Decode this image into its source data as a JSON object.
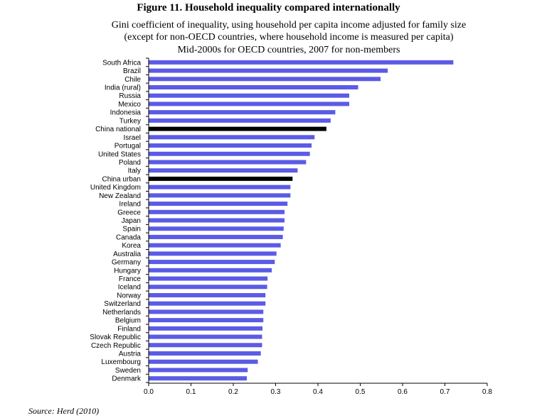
{
  "chart_data": {
    "type": "bar",
    "orientation": "horizontal",
    "title": "Figure 11. Household inequality compared internationally",
    "subtitle_lines": [
      "Gini coefficient of inequality, using household per capita income adjusted for family size",
      "(except for non-OECD countries, where household income is measured per capita)",
      "Mid-2000s for OECD countries, 2007 for non-members"
    ],
    "categories": [
      "South Africa",
      "Brazil",
      "Chile",
      "India (rural)",
      "Russia",
      "Mexico",
      "Indonesia",
      "Turkey",
      "China national",
      "Israel",
      "Portugal",
      "United States",
      "Poland",
      "Italy",
      "China urban",
      "United Kingdom",
      "New Zealand",
      "Ireland",
      "Greece",
      "Japan",
      "Spain",
      "Canada",
      "Korea",
      "Australia",
      "Germany",
      "Hungary",
      "France",
      "Iceland",
      "Norway",
      "Switzerland",
      "Netherlands",
      "Belgium",
      "Finland",
      "Slovak Republic",
      "Czech Republic",
      "Austria",
      "Luxembourg",
      "Sweden",
      "Denmark"
    ],
    "values": [
      0.72,
      0.565,
      0.548,
      0.495,
      0.474,
      0.474,
      0.441,
      0.43,
      0.42,
      0.392,
      0.385,
      0.381,
      0.372,
      0.352,
      0.34,
      0.335,
      0.335,
      0.328,
      0.321,
      0.321,
      0.319,
      0.317,
      0.312,
      0.302,
      0.298,
      0.291,
      0.281,
      0.28,
      0.276,
      0.276,
      0.271,
      0.271,
      0.269,
      0.268,
      0.268,
      0.265,
      0.258,
      0.234,
      0.232
    ],
    "highlight": [
      "China national",
      "China urban"
    ],
    "xlim": [
      0,
      0.8
    ],
    "xticks": [
      "0.0",
      "0.1",
      "0.2",
      "0.3",
      "0.4",
      "0.5",
      "0.6",
      "0.7",
      "0.8"
    ],
    "xlabel": "",
    "ylabel": "",
    "grid": false,
    "colors": {
      "bar": "#5B5BE6",
      "highlight": "#000000",
      "axis": "#000000"
    }
  },
  "source": "Source: Herd (2010)"
}
